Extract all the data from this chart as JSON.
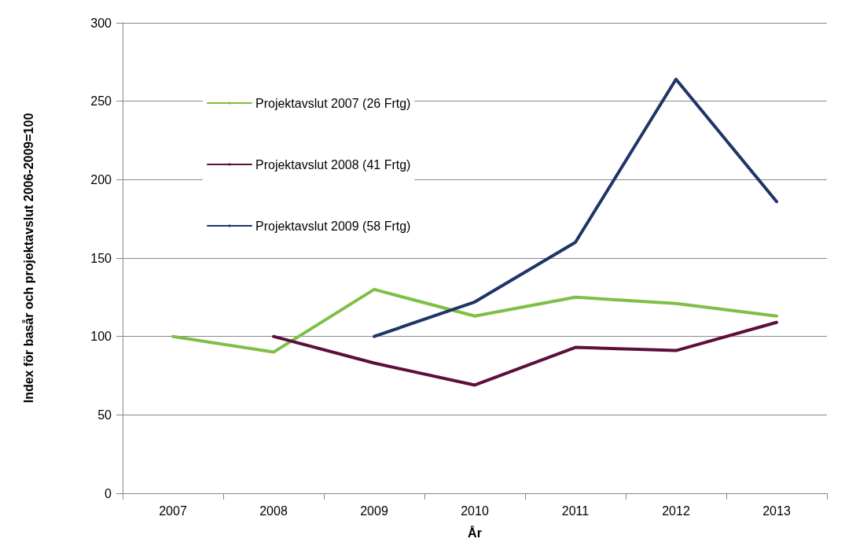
{
  "chart_data": {
    "type": "line",
    "xlabel": "År",
    "ylabel": "Index för basår och projektavslut 2006-2009=100",
    "categories": [
      "2007",
      "2008",
      "2009",
      "2010",
      "2011",
      "2012",
      "2013"
    ],
    "series": [
      {
        "name": "Projektavslut 2007 (26 Frtg)",
        "color": "#7ebf45",
        "values": [
          100,
          90,
          130,
          113,
          125,
          121,
          113
        ]
      },
      {
        "name": "Projektavslut 2008 (41 Frtg)",
        "color": "#5c0f3c",
        "values": [
          null,
          100,
          83,
          69,
          93,
          91,
          109
        ]
      },
      {
        "name": "Projektavslut 2009 (58 Frtg)",
        "color": "#1f3467",
        "values": [
          null,
          null,
          100,
          122,
          160,
          264,
          186
        ]
      }
    ],
    "ylim": [
      0,
      300
    ],
    "yticks": [
      0,
      50,
      100,
      150,
      200,
      250,
      300
    ],
    "grid": "y",
    "legend": "top left",
    "marker": "none",
    "line_style": "solid"
  }
}
